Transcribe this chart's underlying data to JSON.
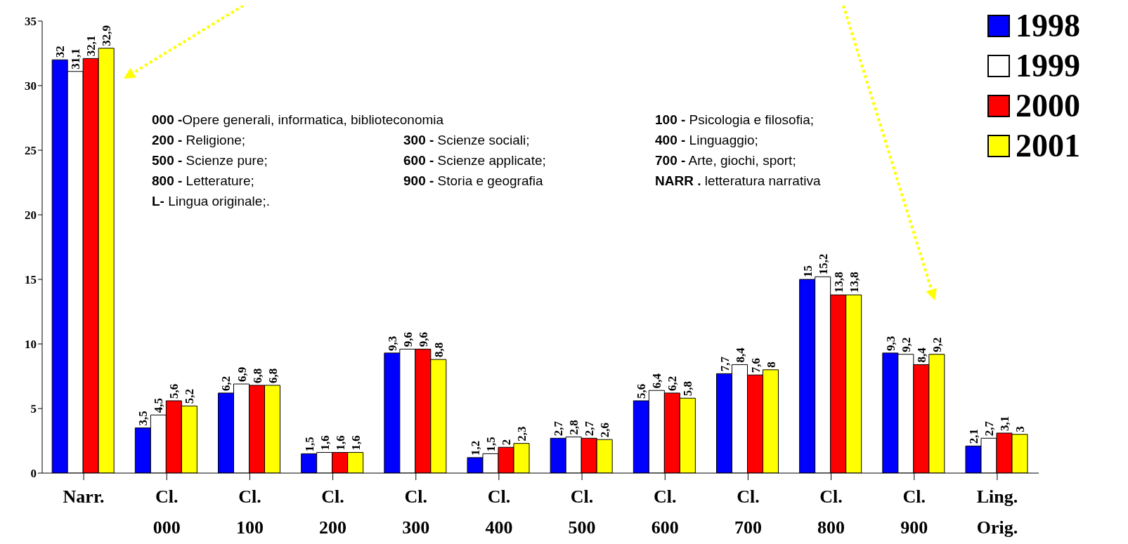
{
  "chart_data": {
    "type": "bar",
    "categories": [
      "Narr.",
      "Cl. 000",
      "Cl. 100",
      "Cl. 200",
      "Cl. 300",
      "Cl. 400",
      "Cl. 500",
      "Cl. 600",
      "Cl. 700",
      "Cl. 800",
      "Cl. 900",
      "Ling. Orig."
    ],
    "series": [
      {
        "name": "1998",
        "color": "#0000ff",
        "values": [
          32,
          3.5,
          6.2,
          1.5,
          9.3,
          1.2,
          2.7,
          5.6,
          7.7,
          15,
          9.3,
          2.1
        ],
        "value_labels": [
          "32",
          "3,5",
          "6,2",
          "1,5",
          "9,3",
          "1,2",
          "2,7",
          "5,6",
          "7,7",
          "15",
          "9,3",
          "2,1"
        ]
      },
      {
        "name": "1999",
        "color": "#ffffff",
        "values": [
          31.1,
          4.5,
          6.9,
          1.6,
          9.6,
          1.5,
          2.8,
          6.4,
          8.4,
          15.2,
          9.2,
          2.7
        ],
        "value_labels": [
          "31,1",
          "4,5",
          "6,9",
          "1,6",
          "9,6",
          "1,5",
          "2,8",
          "6,4",
          "8,4",
          "15,2",
          "9,2",
          "2,7"
        ]
      },
      {
        "name": "2000",
        "color": "#ff0000",
        "values": [
          32.1,
          5.6,
          6.8,
          1.6,
          9.6,
          2,
          2.7,
          6.2,
          7.6,
          13.8,
          8.4,
          3.1
        ],
        "value_labels": [
          "32,1",
          "5,6",
          "6,8",
          "1,6",
          "9,6",
          "2",
          "2,7",
          "6,2",
          "7,6",
          "13,8",
          "8,4",
          "3,1"
        ]
      },
      {
        "name": "2001",
        "color": "#ffff00",
        "values": [
          32.9,
          5.2,
          6.8,
          1.6,
          8.8,
          2.3,
          2.6,
          5.8,
          8,
          13.8,
          9.2,
          3
        ],
        "value_labels": [
          "32,9",
          "5,2",
          "6,8",
          "1,6",
          "8,8",
          "2,3",
          "2,6",
          "5,8",
          "8",
          "13,8",
          "9,2",
          "3"
        ]
      }
    ],
    "ylim": [
      0,
      35
    ],
    "yticks": [
      0,
      5,
      10,
      15,
      20,
      25,
      30,
      35
    ],
    "grid": false,
    "legend": "top right",
    "annotations": [
      "000 -Opere generali, informatica, biblioteconomia",
      "100 -  Psicologia e filosofia;",
      "200 -  Religione;",
      "300 - Scienze sociali;",
      "400 - Linguaggio;",
      "500 - Scienze pure;",
      "600 - Scienze applicate;",
      "700 - Arte, giochi, sport;",
      "800 -  Letterature;",
      "900 -  Storia e geografia",
      "NARR . letteratura narrativa",
      "L- Lingua originale;."
    ]
  }
}
